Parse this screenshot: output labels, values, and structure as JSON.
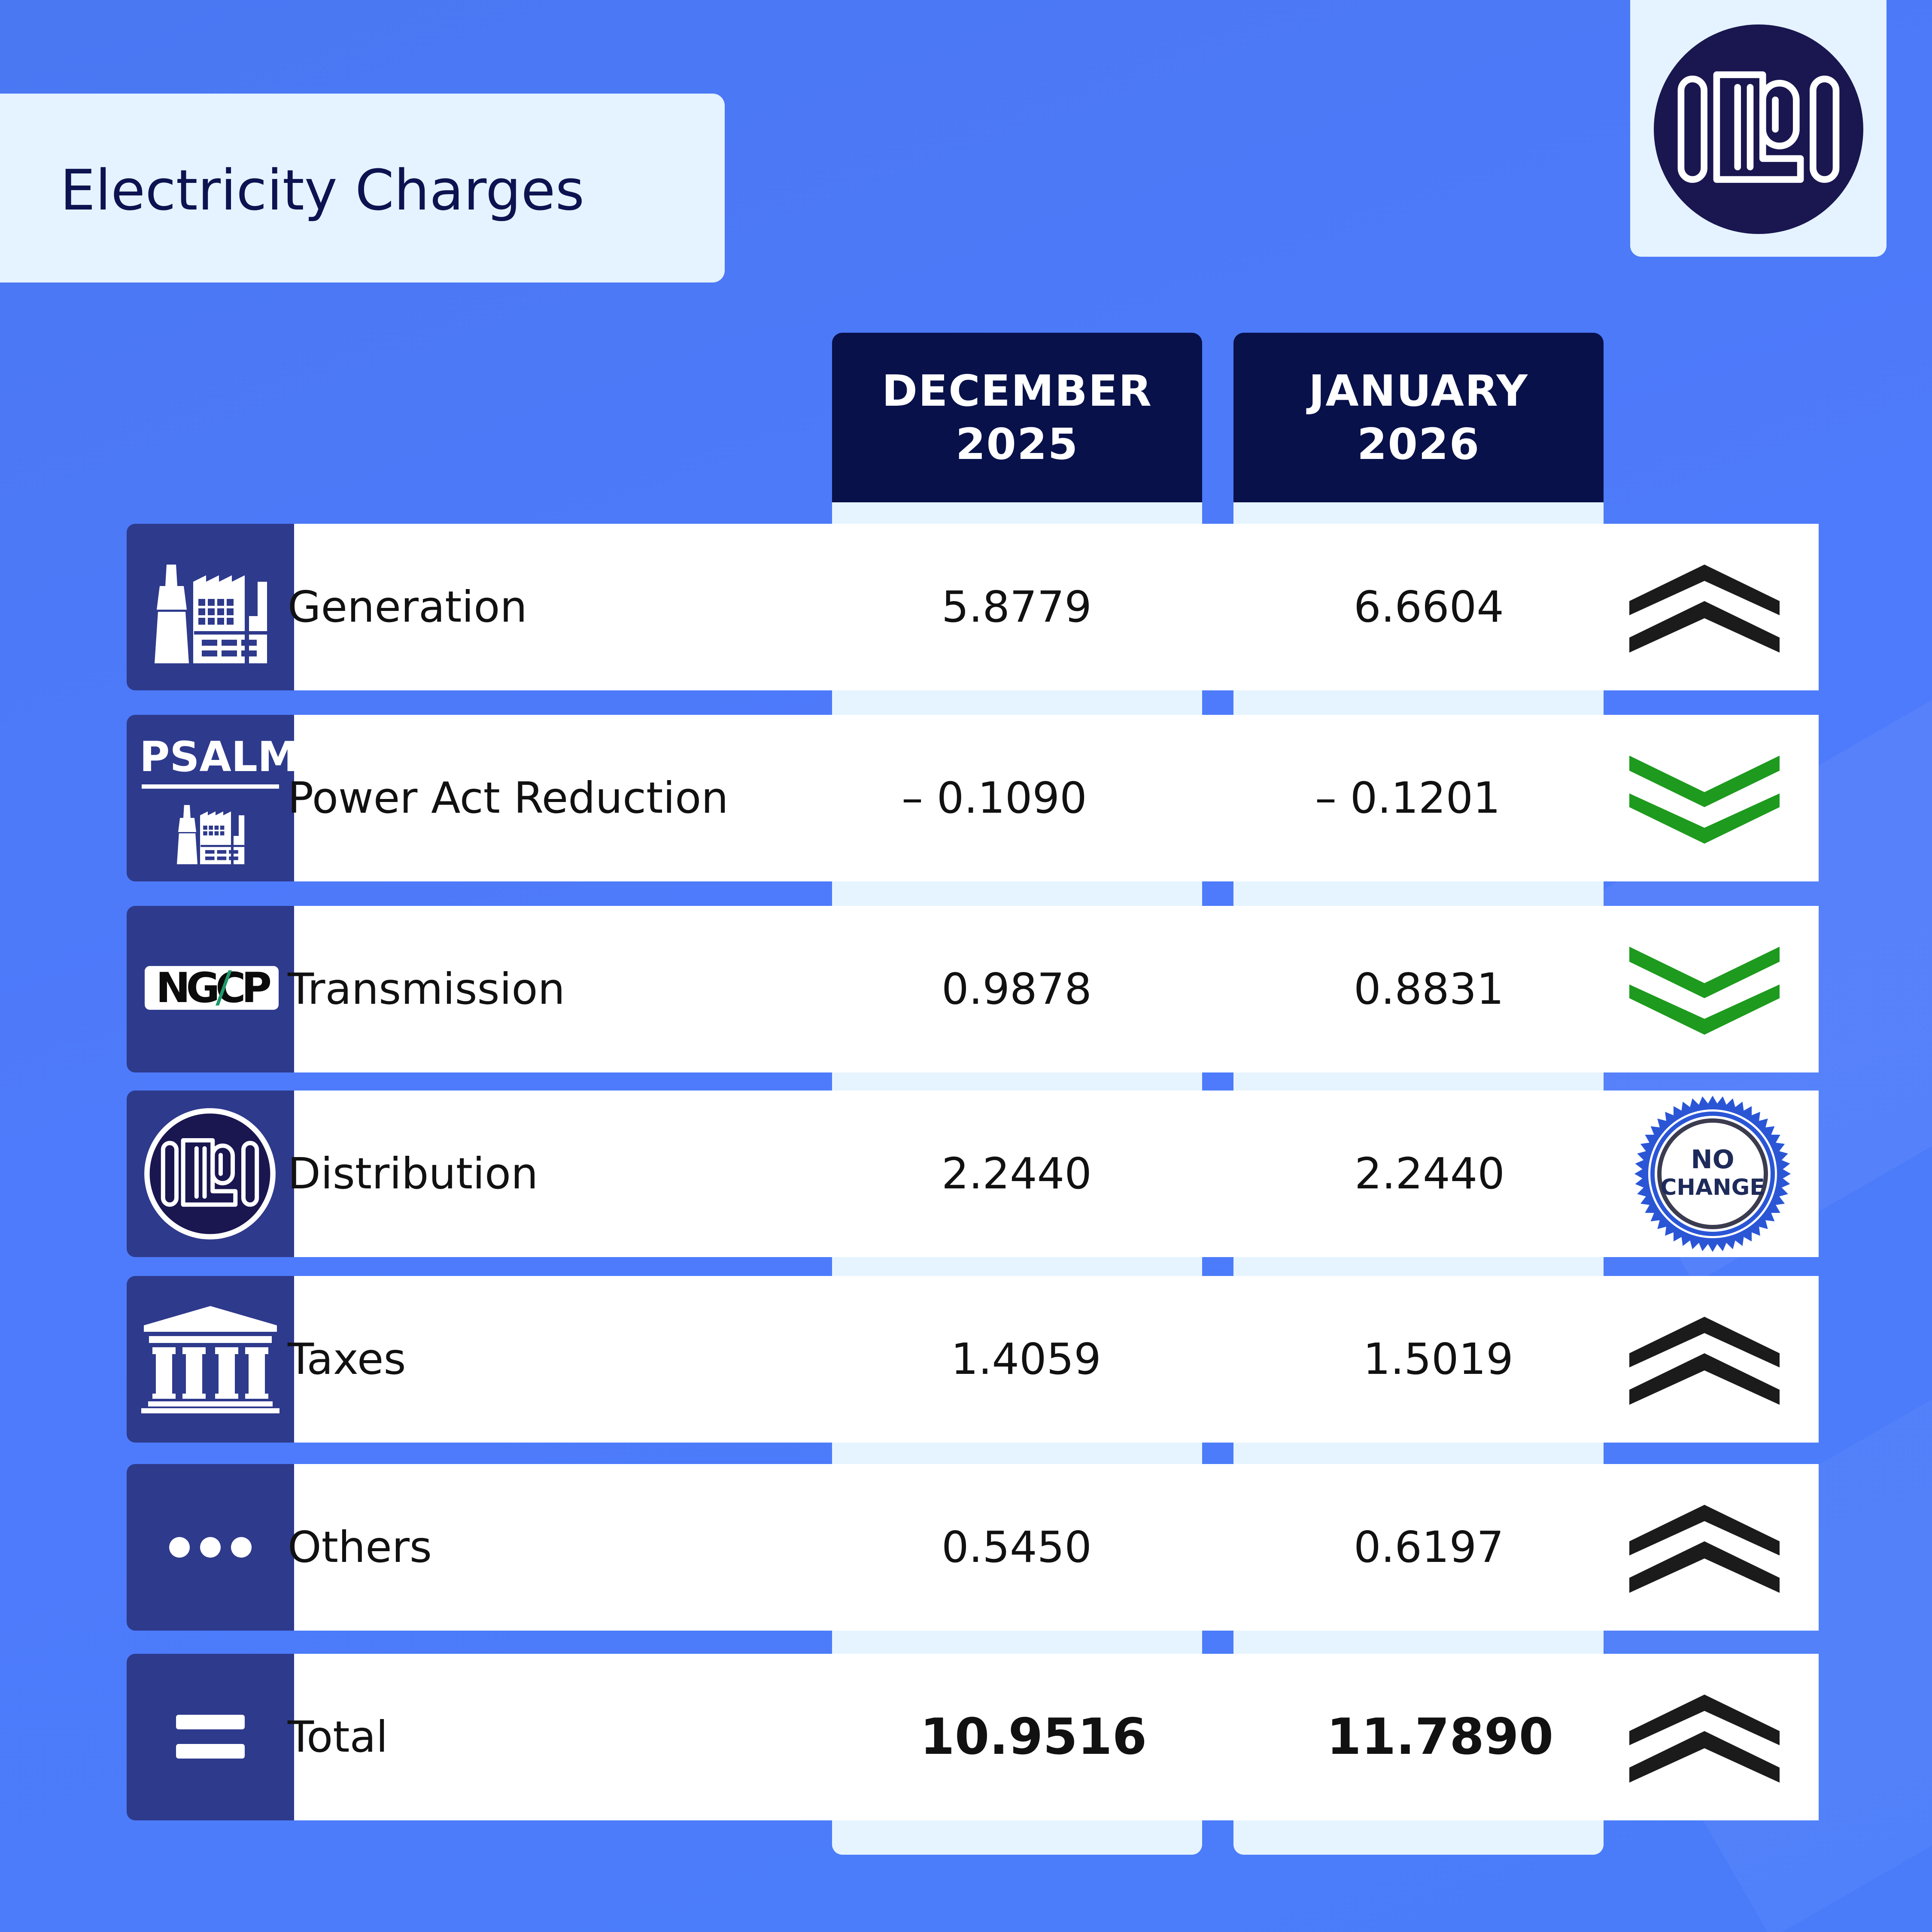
{
  "title": "Electricity Charges",
  "columns": [
    {
      "line1": "DECEMBER",
      "line2": "2025"
    },
    {
      "line1": "JANUARY",
      "line2": "2026"
    }
  ],
  "colors": {
    "up": "#1b1b1b",
    "down": "#1e9a1e",
    "icon_bg": "#2e3a8c",
    "header_bg": "#08114a"
  },
  "rows": [
    {
      "label": "Generation",
      "dec": "5.8779",
      "jan": "6.6604",
      "icon": "power-plant-icon",
      "trend": "up"
    },
    {
      "label": "Power Act Reduction",
      "dec": "– 0.1090",
      "jan": "– 0.1201",
      "icon": "psalm-logo",
      "icon_text": "PSALM",
      "trend": "down"
    },
    {
      "label": "Transmission",
      "dec": "0.9878",
      "jan": "0.8831",
      "icon": "ngcp-logo",
      "icon_text": "NGCP",
      "trend": "down"
    },
    {
      "label": "Distribution",
      "dec": "2.2440",
      "jan": "2.2440",
      "icon": "meralco-logo",
      "trend": "no-change",
      "badge_line1": "NO",
      "badge_line2": "CHANGE"
    },
    {
      "label": "Taxes",
      "dec": "1.4059",
      "jan": "1.5019",
      "icon": "government-building-icon",
      "trend": "up"
    },
    {
      "label": "Others",
      "dec": "0.5450",
      "jan": "0.6197",
      "icon": "ellipsis-icon",
      "trend": "up"
    },
    {
      "label": "Total",
      "dec": "10.9516",
      "jan": "11.7890",
      "icon": "equals-icon",
      "trend": "up"
    }
  ]
}
